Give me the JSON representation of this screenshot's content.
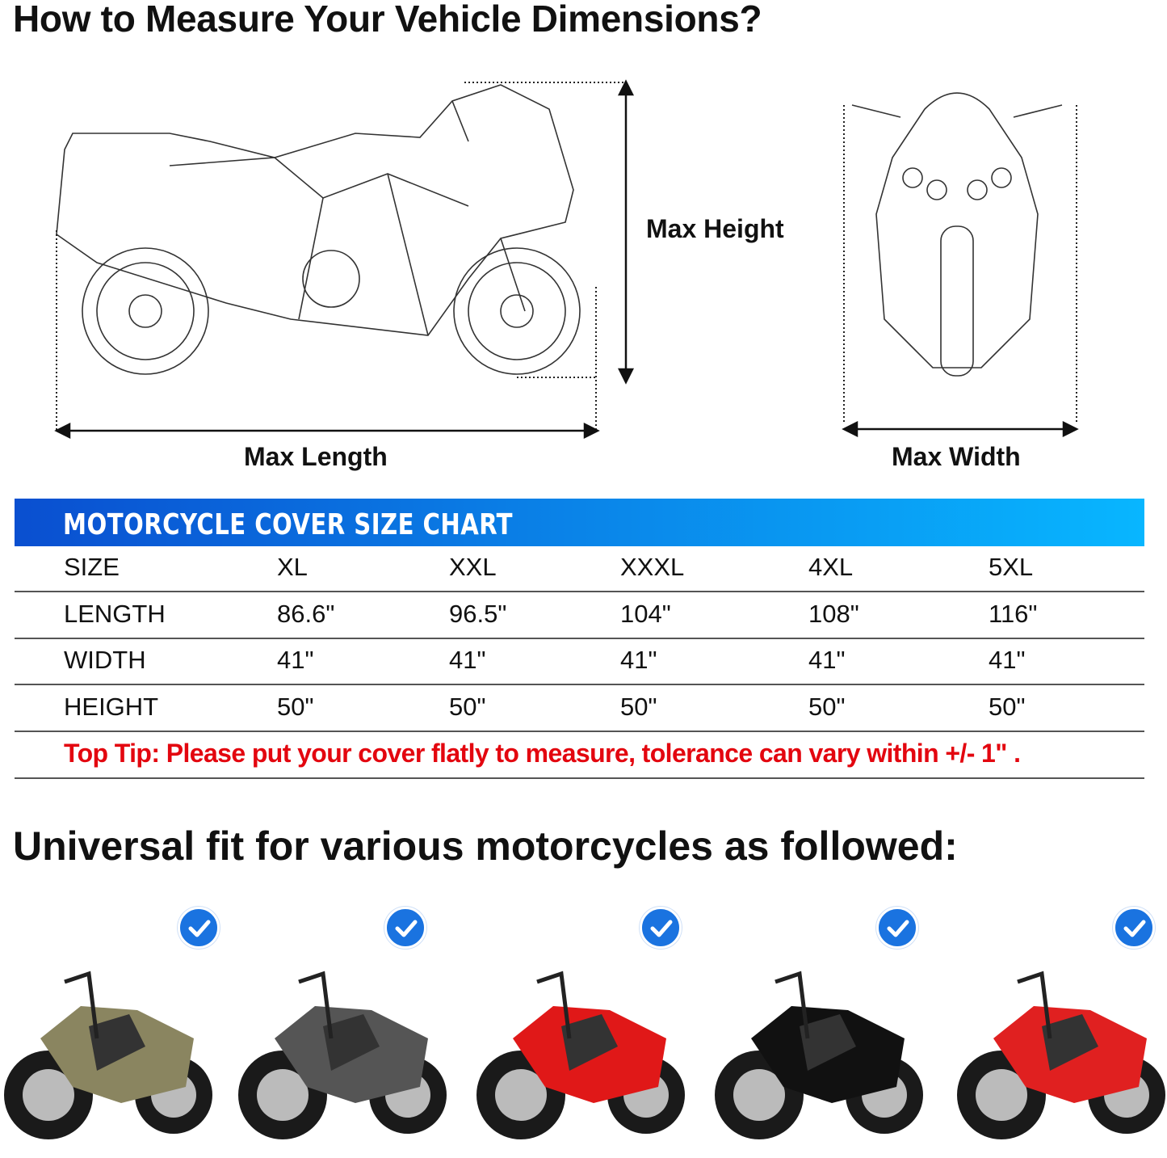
{
  "title": "How to Measure Your Vehicle Dimensions?",
  "diagram": {
    "max_height": "Max Height",
    "max_length": "Max Length",
    "max_width": "Max Width"
  },
  "size_chart": {
    "heading": "MOTORCYCLE COVER SIZE CHART",
    "rows": [
      {
        "label": "SIZE",
        "values": [
          "XL",
          "XXL",
          "XXXL",
          "4XL",
          "5XL"
        ]
      },
      {
        "label": "LENGTH",
        "values": [
          "86.6\"",
          "96.5\"",
          "104\"",
          "108\"",
          "116\""
        ]
      },
      {
        "label": "WIDTH",
        "values": [
          "41\"",
          "41\"",
          "41\"",
          "41\"",
          "41\""
        ]
      },
      {
        "label": "HEIGHT",
        "values": [
          "50\"",
          "50\"",
          "50\"",
          "50\"",
          "50\""
        ]
      }
    ],
    "tip": "Top Tip: Please put your cover flatly to measure, tolerance can vary within +/- 1\" .",
    "header_color": "#0a6fe0",
    "tip_color": "#e3060f"
  },
  "fit_heading": "Universal fit for various motorcycles as followed:",
  "motorcycles": [
    {
      "type": "cruiser",
      "color": "#8a8560",
      "icon": "check-circle-icon"
    },
    {
      "type": "scooter",
      "color": "#555555",
      "icon": "check-circle-icon"
    },
    {
      "type": "sport",
      "color": "#e01818",
      "icon": "check-circle-icon"
    },
    {
      "type": "cruiser",
      "color": "#111111",
      "icon": "check-circle-icon"
    },
    {
      "type": "vespa",
      "color": "#e02020",
      "icon": "check-circle-icon"
    }
  ],
  "check_color": "#1a73e0"
}
